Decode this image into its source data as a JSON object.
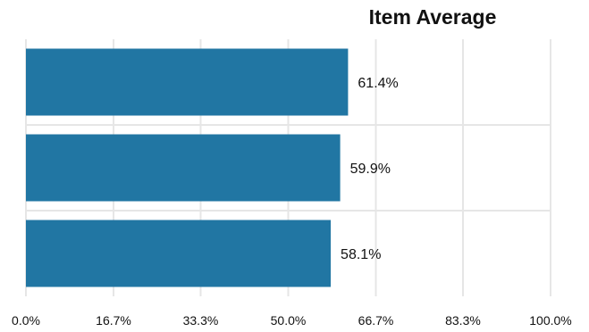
{
  "chart_data": {
    "type": "bar",
    "orientation": "horizontal",
    "title": "Item Average",
    "xlabel": "",
    "ylabel": "",
    "categories": [
      "",
      "",
      ""
    ],
    "values": [
      61.4,
      59.9,
      58.1
    ],
    "data_labels": [
      "61.4%",
      "59.9%",
      "58.1%"
    ],
    "xlim": [
      0,
      100
    ],
    "x_ticks": [
      0,
      16.7,
      33.3,
      50.0,
      66.7,
      83.3,
      100.0
    ],
    "x_tick_labels": [
      "0.0%",
      "16.7%",
      "33.3%",
      "50.0%",
      "66.7%",
      "83.3%",
      "100.0%"
    ],
    "grid": true,
    "legend": "none",
    "bar_color": "#2176a3",
    "grid_color": "#e6e6e6"
  }
}
